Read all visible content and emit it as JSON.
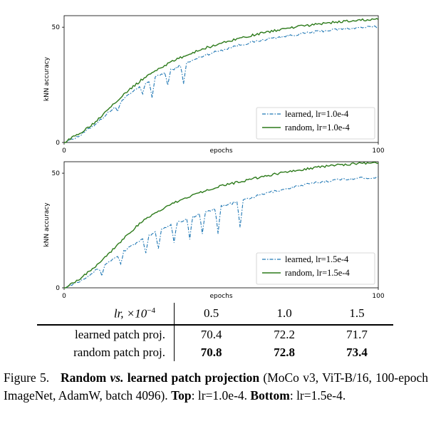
{
  "chart_data": [
    {
      "type": "line",
      "panel": "top",
      "xlabel": "epochs",
      "ylabel": "kNN accuracy",
      "xlim": [
        0,
        100
      ],
      "ylim": [
        0,
        55
      ],
      "x_ticks": [
        "0",
        "100"
      ],
      "y_ticks": [
        "0",
        "50"
      ],
      "legend_position": "lower-right",
      "legend": [
        "learned, lr=1.0e-4",
        "random, lr=1.0e-4"
      ],
      "series": [
        {
          "name": "learned, lr=1.0e-4",
          "style": "dashdot",
          "color": "#1f77b4",
          "x": [
            0,
            5,
            10,
            15,
            20,
            25,
            30,
            35,
            40,
            45,
            50,
            55,
            60,
            65,
            70,
            75,
            80,
            85,
            90,
            95,
            100
          ],
          "values": [
            0,
            3,
            8,
            14,
            20,
            25,
            29,
            32,
            35,
            38,
            40,
            42,
            43.5,
            45,
            46,
            47,
            48,
            48.8,
            49.4,
            49.9,
            50.2
          ],
          "dips": [
            [
              17,
              3
            ],
            [
              25,
              4
            ],
            [
              28,
              8
            ],
            [
              33,
              6
            ],
            [
              38,
              8
            ]
          ]
        },
        {
          "name": "random, lr=1.0e-4",
          "style": "solid",
          "color": "#2c7a1a",
          "x": [
            0,
            5,
            10,
            15,
            20,
            25,
            30,
            35,
            40,
            45,
            50,
            55,
            60,
            65,
            70,
            75,
            80,
            85,
            90,
            95,
            100
          ],
          "values": [
            0,
            4,
            9,
            16,
            22,
            27.5,
            32,
            35.5,
            38.5,
            41,
            43,
            45,
            46.5,
            48,
            49.3,
            50.3,
            51.2,
            52,
            52.6,
            53.1,
            53.6
          ],
          "dips": []
        }
      ]
    },
    {
      "type": "line",
      "panel": "bottom",
      "xlabel": "epochs",
      "ylabel": "kNN accuracy",
      "xlim": [
        0,
        100
      ],
      "ylim": [
        0,
        55
      ],
      "x_ticks": [
        "0",
        "100"
      ],
      "y_ticks": [
        "0",
        "50"
      ],
      "legend_position": "lower-right",
      "legend": [
        "learned, lr=1.5e-4",
        "random, lr=1.5e-4"
      ],
      "series": [
        {
          "name": "learned, lr=1.5e-4",
          "style": "dashdot",
          "color": "#1f77b4",
          "x": [
            0,
            5,
            10,
            15,
            20,
            25,
            30,
            35,
            40,
            45,
            50,
            55,
            60,
            65,
            70,
            75,
            80,
            85,
            90,
            95,
            100
          ],
          "values": [
            0,
            3,
            7.5,
            12,
            17,
            21,
            25,
            28,
            30.5,
            33,
            35.5,
            37.5,
            39.5,
            41.5,
            43,
            44.5,
            45.8,
            46.8,
            47.5,
            47.9,
            48.2
          ],
          "dips": [
            [
              12,
              4
            ],
            [
              18,
              5
            ],
            [
              26,
              7
            ],
            [
              30,
              8
            ],
            [
              35,
              8
            ],
            [
              40,
              9
            ],
            [
              44,
              9
            ],
            [
              49,
              11
            ],
            [
              56,
              12
            ]
          ]
        },
        {
          "name": "random, lr=1.5e-4",
          "style": "solid",
          "color": "#2c7a1a",
          "x": [
            0,
            5,
            10,
            15,
            20,
            25,
            30,
            35,
            40,
            45,
            50,
            55,
            60,
            65,
            70,
            75,
            80,
            85,
            90,
            95,
            100
          ],
          "values": [
            0,
            4,
            9.5,
            16,
            23,
            29,
            33.5,
            37,
            40,
            42.5,
            44.5,
            46,
            47.5,
            49,
            50.3,
            51.5,
            52.5,
            53.3,
            53.9,
            54.3,
            54.5
          ],
          "dips": []
        }
      ]
    }
  ],
  "table": {
    "header_label": "lr, ×10",
    "header_exp": "−4",
    "columns": [
      "0.5",
      "1.0",
      "1.5"
    ],
    "rows": [
      {
        "label": "learned patch proj.",
        "values": [
          "70.4",
          "72.2",
          "71.7"
        ]
      },
      {
        "label": "random patch proj.",
        "values": [
          "70.8",
          "72.8",
          "73.4"
        ]
      }
    ]
  },
  "caption": {
    "figure_label": "Figure 5.",
    "title_1": "Random",
    "title_vs": "vs.",
    "title_2": "learned patch projection",
    "setup": "(MoCo v3, ViT-B/16, 100-epoch ImageNet, AdamW, batch 4096).",
    "top_label": "Top",
    "top_text": "lr=1.0e-4.",
    "bottom_label": "Bottom",
    "bottom_text": "lr=1.5e-4."
  }
}
